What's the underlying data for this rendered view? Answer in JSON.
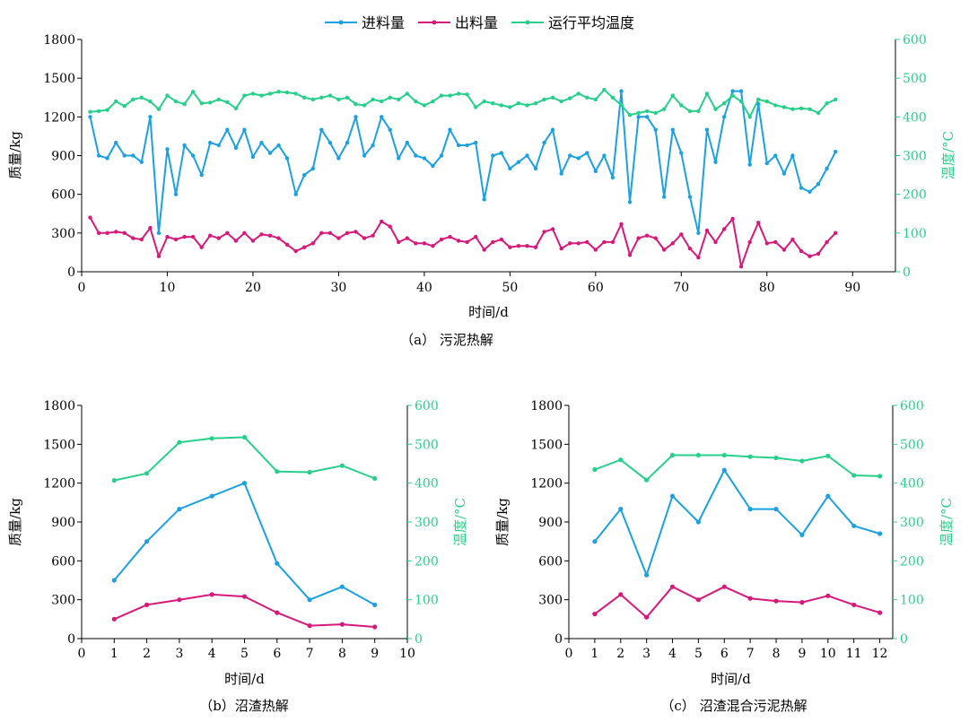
{
  "legend": [
    {
      "label": "进料量",
      "color": "#1ba1e2"
    },
    {
      "label": "出料量",
      "color": "#d6197a"
    },
    {
      "label": "运行平均温度",
      "color": "#27d08a"
    }
  ],
  "chart_data": [
    {
      "type": "line",
      "title": "",
      "caption": "（a） 污泥热解",
      "xlabel": "时间/d",
      "ylabel": "质量/kg",
      "y2label": "温度/°C",
      "xlim": [
        0,
        95
      ],
      "xticks": [
        0,
        10,
        20,
        30,
        40,
        50,
        60,
        70,
        80,
        90
      ],
      "ylim": [
        0,
        1800
      ],
      "yticks": [
        0,
        300,
        600,
        900,
        1200,
        1500,
        1800
      ],
      "y2lim": [
        0,
        600
      ],
      "y2ticks": [
        0,
        100,
        200,
        300,
        400,
        500,
        600
      ],
      "x": [
        1,
        2,
        3,
        4,
        5,
        6,
        7,
        8,
        9,
        10,
        11,
        12,
        13,
        14,
        15,
        16,
        17,
        18,
        19,
        20,
        21,
        22,
        23,
        24,
        25,
        26,
        27,
        28,
        29,
        30,
        31,
        32,
        33,
        34,
        35,
        36,
        37,
        38,
        39,
        40,
        41,
        42,
        43,
        44,
        45,
        46,
        47,
        48,
        49,
        50,
        51,
        52,
        53,
        54,
        55,
        56,
        57,
        58,
        59,
        60,
        61,
        62,
        63,
        64,
        65,
        66,
        67,
        68,
        69,
        70,
        71,
        72,
        73,
        74,
        75,
        76,
        77,
        78,
        79,
        80,
        81,
        82,
        83,
        84,
        85,
        86,
        87,
        88
      ],
      "series": [
        {
          "name": "进料量",
          "axis": "left",
          "color": "#1ba1e2",
          "values": [
            1200,
            900,
            880,
            1000,
            900,
            900,
            850,
            1200,
            300,
            950,
            600,
            980,
            900,
            750,
            1000,
            980,
            1100,
            960,
            1100,
            890,
            1000,
            920,
            980,
            880,
            600,
            750,
            800,
            1100,
            1000,
            880,
            1000,
            1200,
            900,
            980,
            1200,
            1100,
            880,
            1000,
            900,
            880,
            820,
            900,
            1100,
            980,
            980,
            1000,
            560,
            900,
            920,
            800,
            850,
            900,
            800,
            1000,
            1100,
            760,
            900,
            880,
            920,
            780,
            900,
            730,
            1400,
            540,
            1200,
            1200,
            1100,
            580,
            1100,
            920,
            580,
            300,
            1100,
            850,
            1200,
            1400,
            1400,
            830,
            1300,
            840,
            900,
            760,
            900,
            650,
            620,
            680,
            800,
            930
          ]
        },
        {
          "name": "出料量",
          "axis": "left",
          "color": "#d6197a",
          "values": [
            420,
            300,
            300,
            310,
            300,
            260,
            250,
            340,
            120,
            270,
            250,
            270,
            270,
            190,
            280,
            260,
            300,
            240,
            300,
            240,
            290,
            280,
            260,
            210,
            160,
            190,
            220,
            300,
            300,
            260,
            300,
            310,
            260,
            280,
            390,
            350,
            230,
            260,
            220,
            220,
            200,
            250,
            270,
            240,
            230,
            270,
            170,
            230,
            250,
            190,
            200,
            200,
            190,
            310,
            330,
            180,
            220,
            220,
            230,
            170,
            230,
            230,
            370,
            130,
            260,
            280,
            260,
            170,
            220,
            290,
            180,
            110,
            320,
            230,
            330,
            410,
            40,
            230,
            380,
            220,
            230,
            170,
            250,
            160,
            120,
            140,
            230,
            300
          ]
        },
        {
          "name": "运行平均温度",
          "axis": "right",
          "color": "#27d08a",
          "values": [
            413,
            415,
            418,
            440,
            428,
            445,
            450,
            440,
            420,
            455,
            440,
            433,
            465,
            435,
            437,
            445,
            438,
            422,
            455,
            460,
            455,
            460,
            465,
            463,
            460,
            450,
            445,
            450,
            455,
            445,
            450,
            433,
            430,
            445,
            440,
            450,
            445,
            460,
            440,
            430,
            440,
            455,
            455,
            460,
            458,
            425,
            440,
            435,
            430,
            425,
            435,
            430,
            435,
            445,
            450,
            440,
            448,
            460,
            450,
            445,
            470,
            450,
            430,
            405,
            410,
            415,
            410,
            420,
            455,
            430,
            415,
            415,
            460,
            420,
            435,
            455,
            440,
            400,
            445,
            440,
            430,
            425,
            420,
            422,
            420,
            410,
            435,
            445
          ]
        }
      ]
    },
    {
      "type": "line",
      "title": "",
      "caption": "（b）沼渣热解",
      "xlabel": "时间/d",
      "ylabel": "质量/kg",
      "y2label": "温度/°C",
      "xlim": [
        0,
        10
      ],
      "xticks": [
        0,
        1,
        2,
        3,
        4,
        5,
        6,
        7,
        8,
        9,
        10
      ],
      "ylim": [
        0,
        1800
      ],
      "yticks": [
        0,
        300,
        600,
        900,
        1200,
        1500,
        1800
      ],
      "y2lim": [
        0,
        600
      ],
      "y2ticks": [
        0,
        100,
        200,
        300,
        400,
        500,
        600
      ],
      "x": [
        1,
        2,
        3,
        4,
        5,
        6,
        7,
        8,
        9
      ],
      "series": [
        {
          "name": "进料量",
          "axis": "left",
          "color": "#1ba1e2",
          "values": [
            450,
            750,
            1000,
            1100,
            1200,
            580,
            300,
            400,
            260
          ]
        },
        {
          "name": "出料量",
          "axis": "left",
          "color": "#d6197a",
          "values": [
            150,
            260,
            300,
            340,
            325,
            200,
            100,
            110,
            90
          ]
        },
        {
          "name": "运行平均温度",
          "axis": "right",
          "color": "#27d08a",
          "values": [
            407,
            425,
            505,
            515,
            518,
            430,
            428,
            445,
            412
          ]
        }
      ]
    },
    {
      "type": "line",
      "title": "",
      "caption": "（c） 沼渣混合污泥热解",
      "xlabel": "时间/d",
      "ylabel": "质量/kg",
      "y2label": "温度/°C",
      "xlim": [
        0,
        12.5
      ],
      "xticks": [
        0,
        1,
        2,
        3,
        4,
        5,
        6,
        7,
        8,
        9,
        10,
        11,
        12
      ],
      "ylim": [
        0,
        1800
      ],
      "yticks": [
        0,
        300,
        600,
        900,
        1200,
        1500,
        1800
      ],
      "y2lim": [
        0,
        600
      ],
      "y2ticks": [
        0,
        100,
        200,
        300,
        400,
        500,
        600
      ],
      "x": [
        1,
        2,
        3,
        4,
        5,
        6,
        7,
        8,
        9,
        10,
        11,
        12
      ],
      "series": [
        {
          "name": "进料量",
          "axis": "left",
          "color": "#1ba1e2",
          "values": [
            750,
            1000,
            490,
            1100,
            900,
            1300,
            1000,
            1000,
            800,
            1100,
            870,
            810
          ]
        },
        {
          "name": "出料量",
          "axis": "left",
          "color": "#d6197a",
          "values": [
            190,
            340,
            165,
            400,
            300,
            400,
            310,
            290,
            280,
            330,
            260,
            200
          ]
        },
        {
          "name": "运行平均温度",
          "axis": "right",
          "color": "#27d08a",
          "values": [
            435,
            460,
            408,
            472,
            472,
            472,
            468,
            465,
            457,
            470,
            420,
            418
          ]
        }
      ]
    }
  ]
}
